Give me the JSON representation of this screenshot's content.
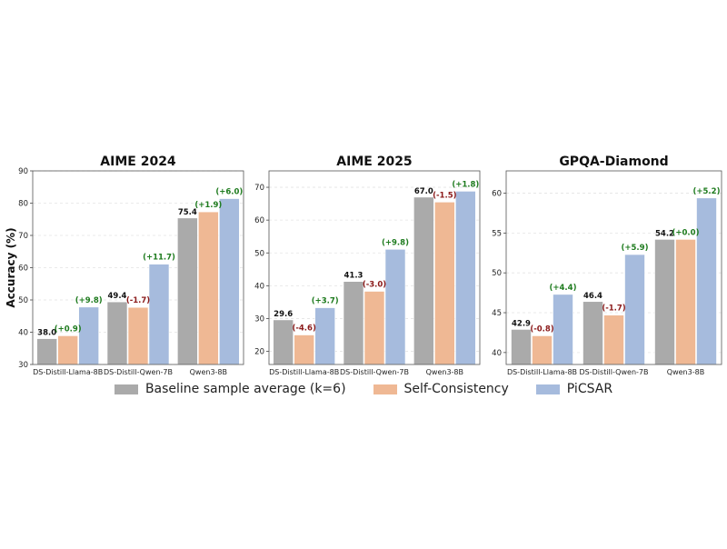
{
  "ylabel": "Accuracy (%)",
  "colors": {
    "baseline": "#aaaaaa",
    "sc": "#efb894",
    "picsar": "#a6bbdd",
    "pos": "#1e7b1e",
    "neg": "#8b1a1a"
  },
  "legend": [
    {
      "label": "Baseline sample average (k=6)",
      "color": "#aaaaaa"
    },
    {
      "label": "Self-Consistency",
      "color": "#efb894"
    },
    {
      "label": "PiCSAR",
      "color": "#a6bbdd"
    }
  ],
  "chart_data": [
    {
      "type": "bar",
      "title": "AIME 2024",
      "categories": [
        "DS-Distill-Llama-8B",
        "DS-Distill-Qwen-7B",
        "Qwen3-8B"
      ],
      "ylim": [
        30,
        90
      ],
      "yticks": [
        30,
        40,
        50,
        60,
        70,
        80,
        90
      ],
      "grid": true,
      "series": [
        {
          "name": "Baseline sample average (k=6)",
          "values": [
            38.0,
            49.4,
            75.4
          ]
        },
        {
          "name": "Self-Consistency",
          "values": [
            38.9,
            47.7,
            77.3
          ]
        },
        {
          "name": "PiCSAR",
          "values": [
            47.8,
            61.1,
            81.4
          ]
        }
      ],
      "value_labels": [
        "38.0",
        "49.4",
        "75.4"
      ],
      "delta_labels": [
        [
          "(+0.9)",
          "(-1.7)",
          "(+1.9)"
        ],
        [
          "(+9.8)",
          "(+11.7)",
          "(+6.0)"
        ]
      ]
    },
    {
      "type": "bar",
      "title": "AIME 2025",
      "categories": [
        "DS-Distill-Llama-8B",
        "DS-Distill-Qwen-7B",
        "Qwen3-8B"
      ],
      "ylim": [
        16,
        75
      ],
      "yticks": [
        20,
        30,
        40,
        50,
        60,
        70
      ],
      "grid": true,
      "series": [
        {
          "name": "Baseline sample average (k=6)",
          "values": [
            29.6,
            41.3,
            67.0
          ]
        },
        {
          "name": "Self-Consistency",
          "values": [
            25.0,
            38.3,
            65.5
          ]
        },
        {
          "name": "PiCSAR",
          "values": [
            33.3,
            51.1,
            68.8
          ]
        }
      ],
      "value_labels": [
        "29.6",
        "41.3",
        "67.0"
      ],
      "delta_labels": [
        [
          "(-4.6)",
          "(-3.0)",
          "(-1.5)"
        ],
        [
          "(+3.7)",
          "(+9.8)",
          "(+1.8)"
        ]
      ]
    },
    {
      "type": "bar",
      "title": "GPQA-Diamond",
      "categories": [
        "DS-Distill-Llama-8B",
        "DS-Distill-Qwen-7B",
        "Qwen3-8B"
      ],
      "ylim": [
        38.5,
        62.8
      ],
      "yticks": [
        40,
        45,
        50,
        55,
        60
      ],
      "grid": true,
      "series": [
        {
          "name": "Baseline sample average (k=6)",
          "values": [
            42.9,
            46.4,
            54.2
          ]
        },
        {
          "name": "Self-Consistency",
          "values": [
            42.1,
            44.7,
            54.2
          ]
        },
        {
          "name": "PiCSAR",
          "values": [
            47.3,
            52.3,
            59.4
          ]
        }
      ],
      "value_labels": [
        "42.9",
        "46.4",
        "54.2"
      ],
      "delta_labels": [
        [
          "(-0.8)",
          "(-1.7)",
          "(+0.0)"
        ],
        [
          "(+4.4)",
          "(+5.9)",
          "(+5.2)"
        ]
      ]
    }
  ]
}
